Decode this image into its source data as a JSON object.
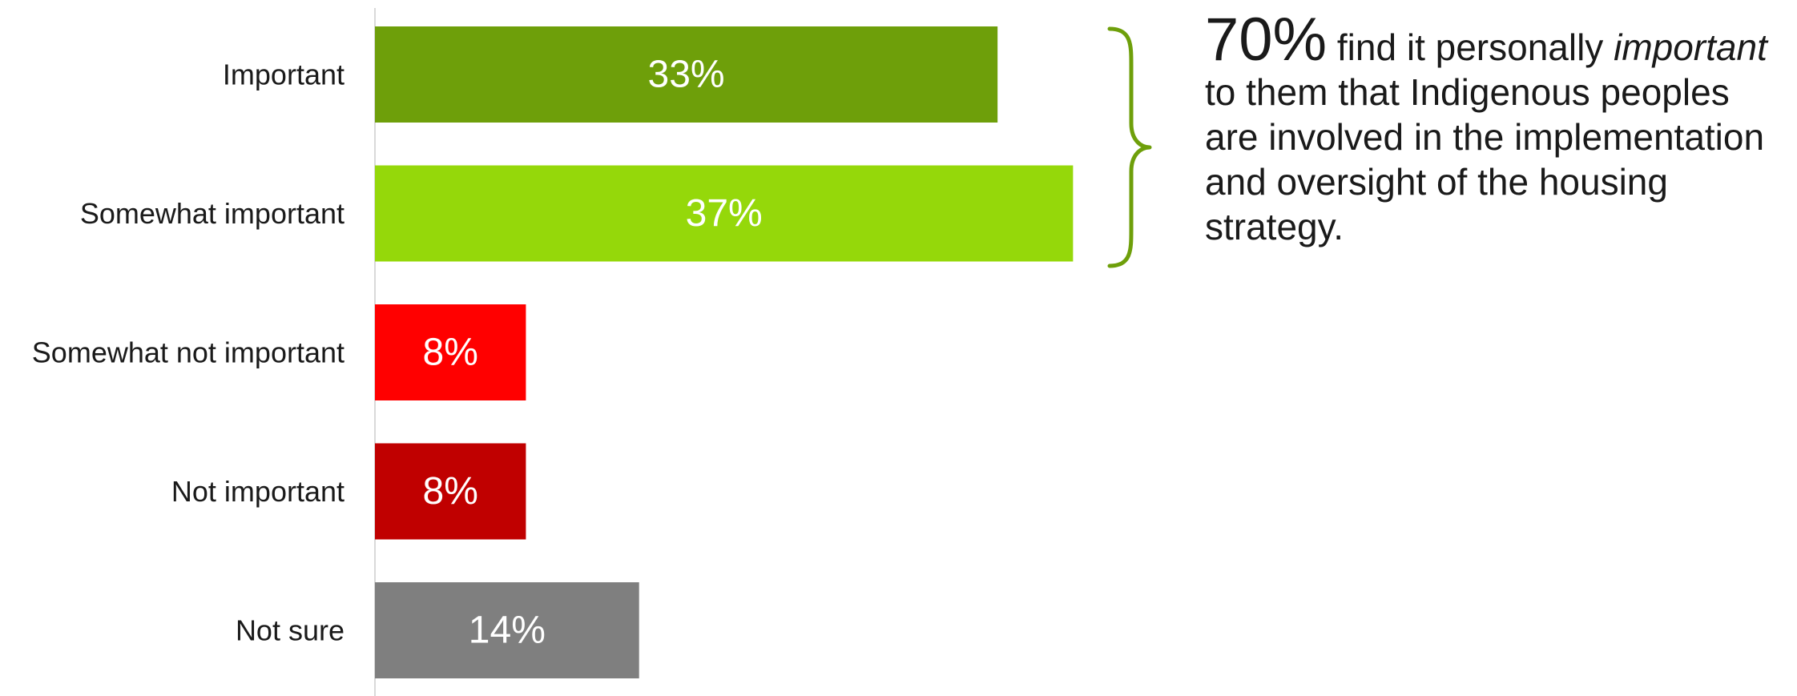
{
  "chart_data": {
    "type": "bar",
    "orientation": "horizontal",
    "categories": [
      "Important",
      "Somewhat important",
      "Somewhat not important",
      "Not important",
      "Not sure"
    ],
    "values": [
      33,
      37,
      8,
      8,
      14
    ],
    "value_labels": [
      "33%",
      "37%",
      "8%",
      "8%",
      "14%"
    ],
    "colors": [
      "#6e9f0a",
      "#95d80a",
      "#ff0000",
      "#c00000",
      "#7f7f7f"
    ],
    "value_unit": "%",
    "xlim": [
      0,
      40
    ],
    "grid": false,
    "annotation": {
      "bracket_color": "#6e9f0a",
      "bracket_covers": [
        "Important",
        "Somewhat important"
      ],
      "big_value": "70%",
      "text_part1": " find it personally ",
      "text_italic": "important",
      "text_part2": " to them that Indigenous peoples are involved in the implementation and oversight of the housing strategy."
    }
  }
}
